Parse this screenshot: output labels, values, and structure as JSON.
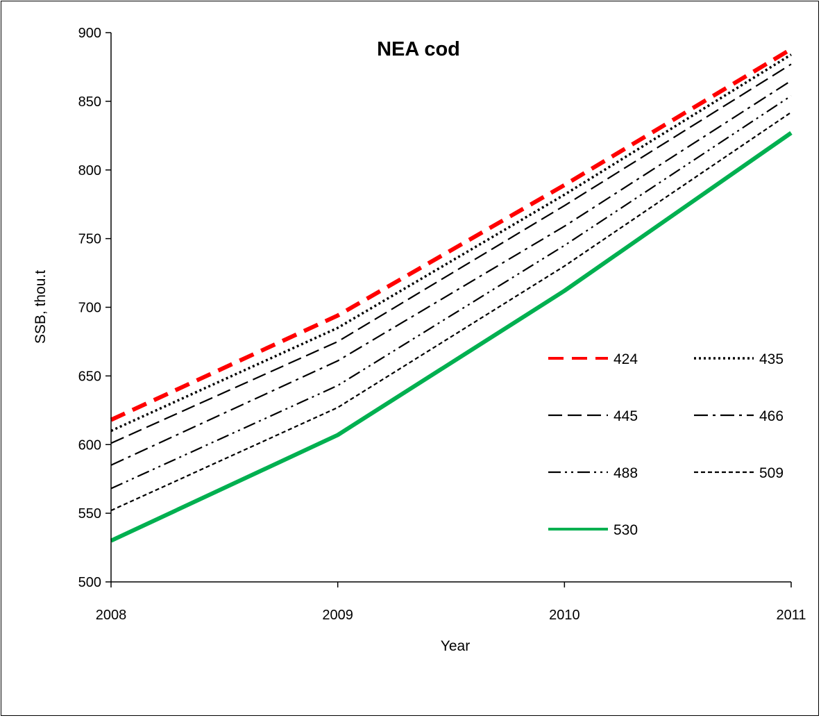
{
  "chart_data": {
    "type": "line",
    "title": "NEA cod",
    "xlabel": "Year",
    "ylabel": "SSB, thou.t",
    "x": [
      2008,
      2009,
      2010,
      2011
    ],
    "x_ticks": [
      "2008",
      "2009",
      "2010",
      "2011"
    ],
    "y_ticks": [
      "500",
      "550",
      "600",
      "650",
      "700",
      "750",
      "800",
      "850",
      "900"
    ],
    "xlim": [
      2008,
      2011
    ],
    "ylim": [
      500,
      900
    ],
    "grid": false,
    "legend_position": "right",
    "series": [
      {
        "name": "424",
        "values": [
          618,
          694,
          789,
          888
        ],
        "color": "#ff0000",
        "style": "dashed-thick"
      },
      {
        "name": "435",
        "values": [
          610,
          685,
          782,
          884
        ],
        "color": "#000000",
        "style": "dotted"
      },
      {
        "name": "445",
        "values": [
          601,
          675,
          774,
          877
        ],
        "color": "#000000",
        "style": "long-dash"
      },
      {
        "name": "466",
        "values": [
          585,
          661,
          759,
          865
        ],
        "color": "#000000",
        "style": "dash-dot"
      },
      {
        "name": "488",
        "values": [
          568,
          643,
          745,
          854
        ],
        "color": "#000000",
        "style": "dash-dot-dot"
      },
      {
        "name": "509",
        "values": [
          552,
          627,
          730,
          842
        ],
        "color": "#000000",
        "style": "short-dash"
      },
      {
        "name": "530",
        "values": [
          530,
          607,
          712,
          827
        ],
        "color": "#00b050",
        "style": "solid-thick"
      }
    ]
  }
}
